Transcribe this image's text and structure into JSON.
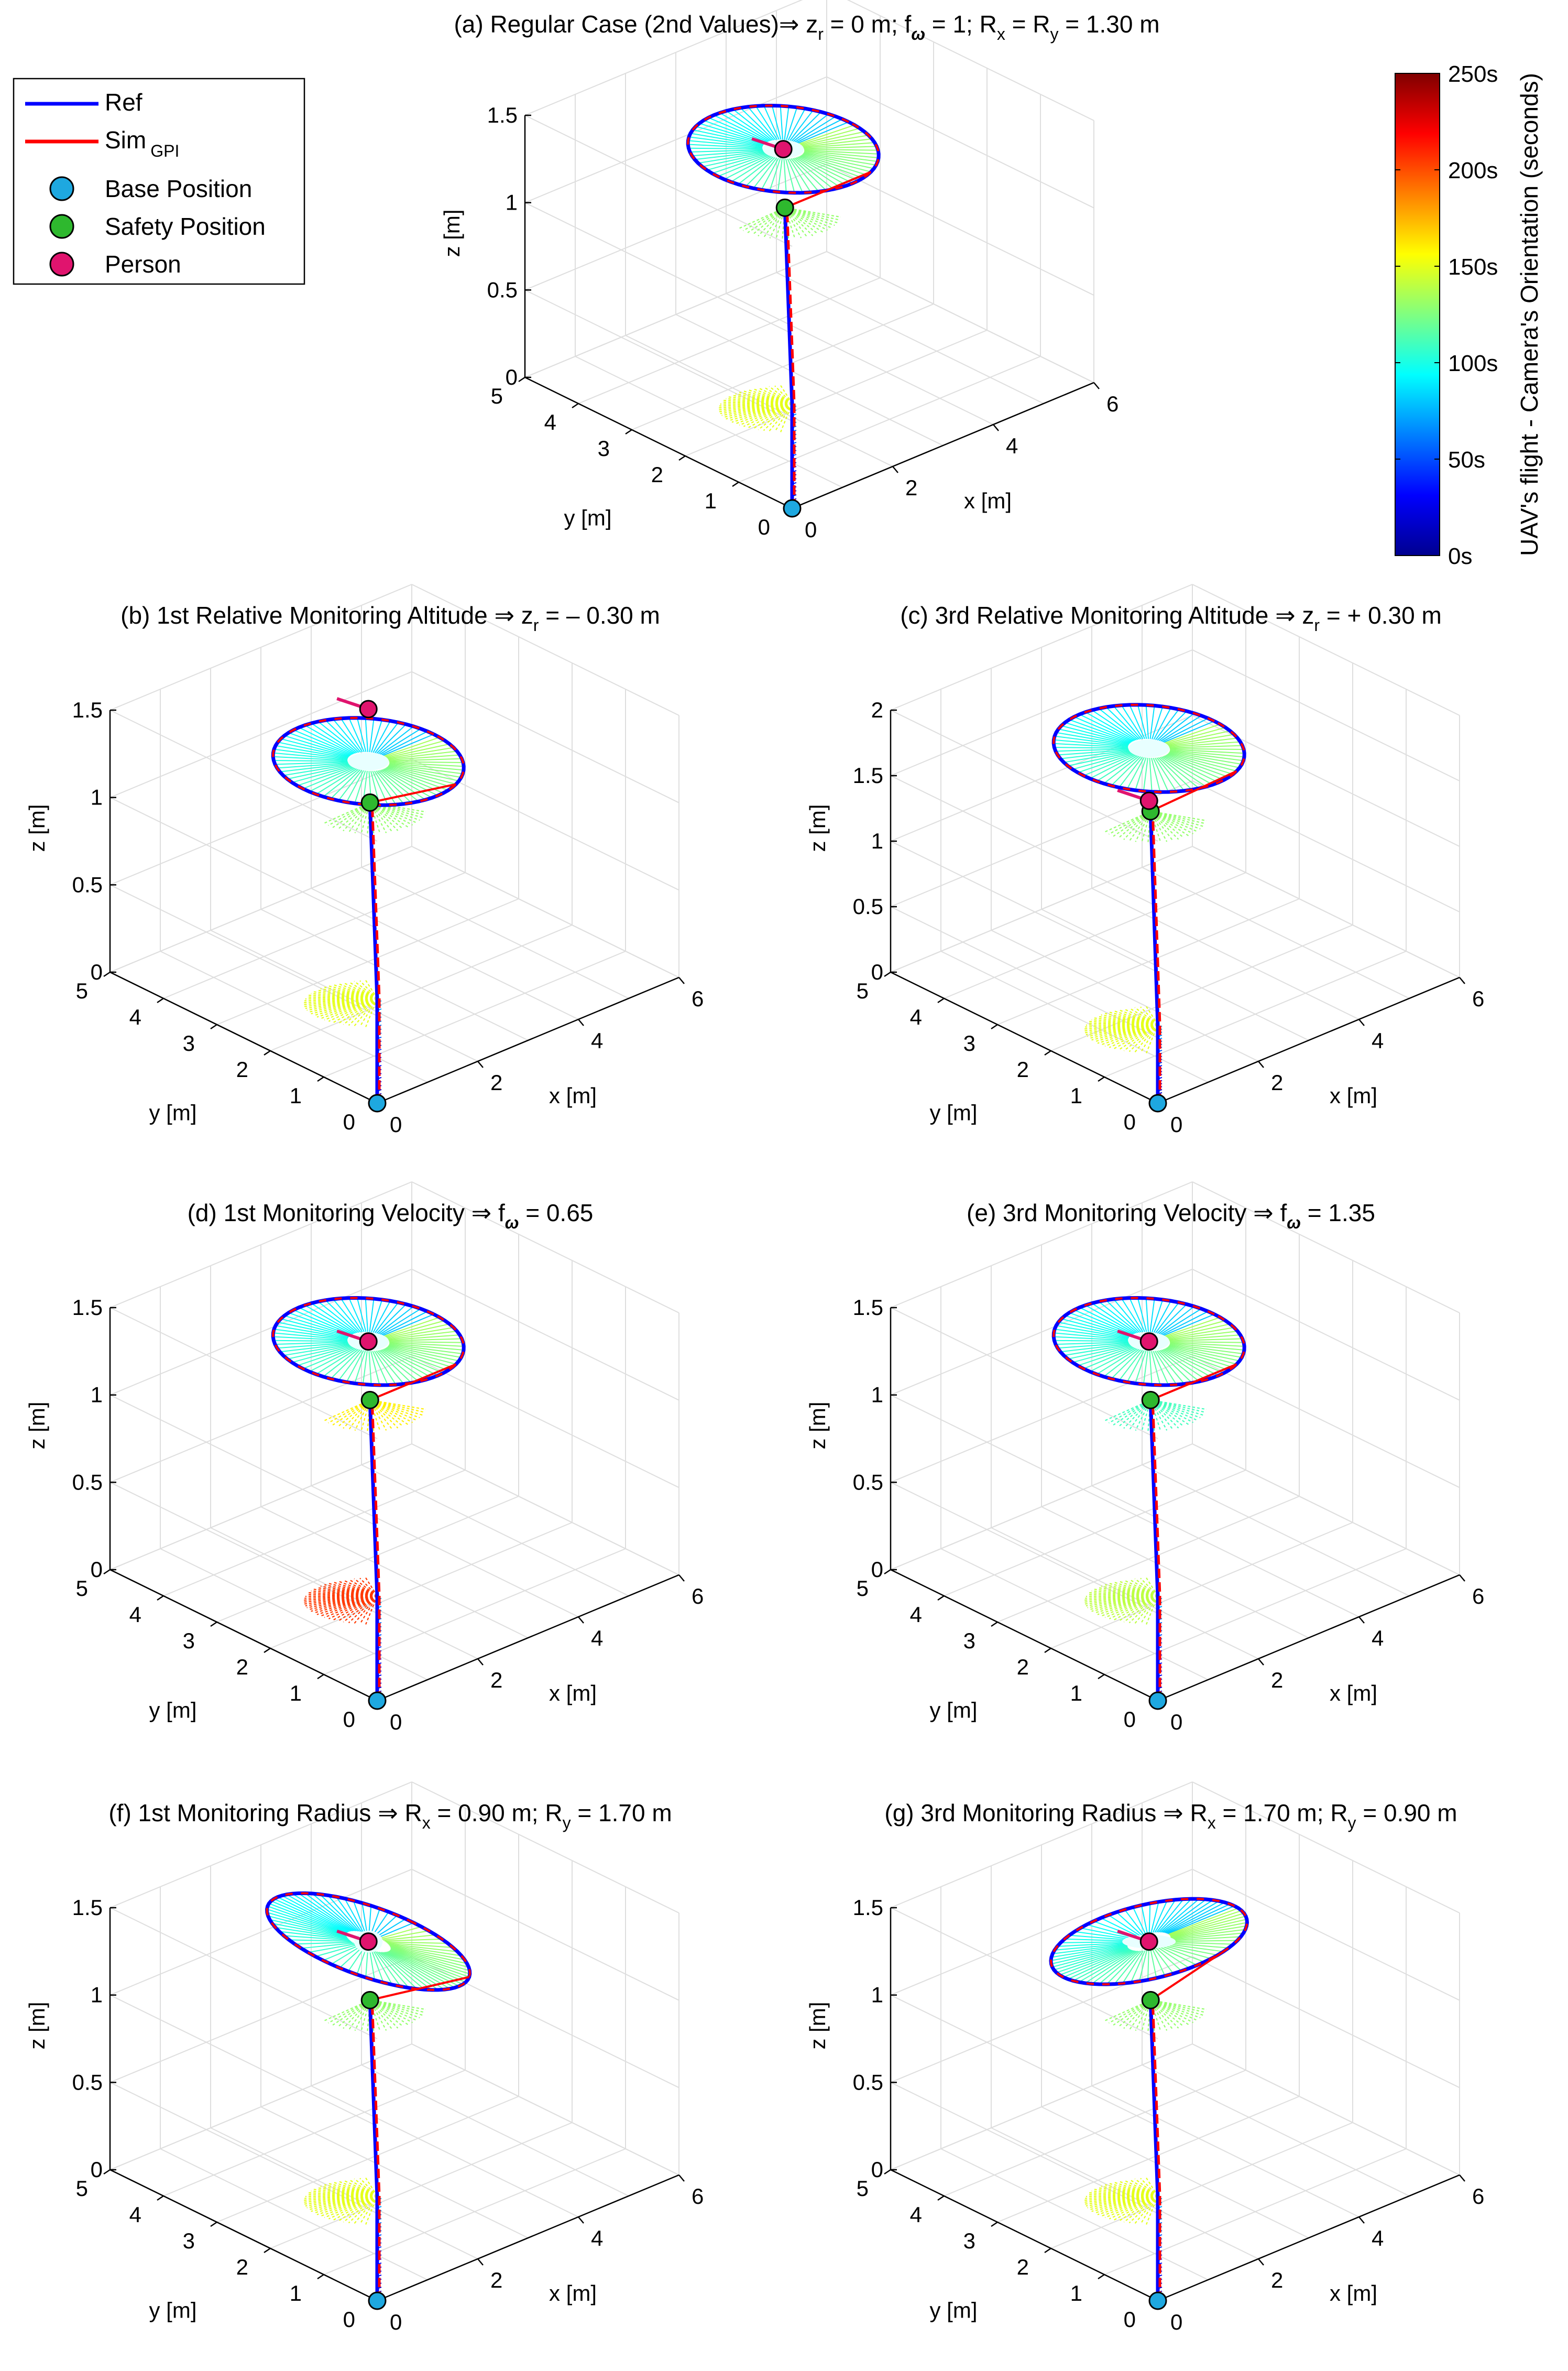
{
  "legend": {
    "ref": "Ref",
    "sim": "Sim",
    "sim_sub": "GPI",
    "base": "Base Position",
    "safety": "Safety Position",
    "person": "Person"
  },
  "colorbar": {
    "label": "UAV's flight - Camera's Orientation (seconds)",
    "ticks": [
      "0s",
      "50s",
      "100s",
      "150s",
      "200s",
      "250s"
    ],
    "range": [
      0,
      250
    ]
  },
  "axes_labels": {
    "x": "x [m]",
    "y": "y [m]",
    "z": "z [m]"
  },
  "colors": {
    "ref": "#0000ff",
    "sim": "#ff0000",
    "base": "#1ea8e0",
    "safety": "#2eb82e",
    "person": "#e0146e",
    "grid": "#dedede"
  },
  "chart_data": [
    {
      "id": "a",
      "type": "line3d",
      "title": "(a) Regular Case (2nd Values)⇒ z",
      "title_parts": [
        "(a) Regular Case (2nd Values)⇒ z",
        "r",
        " = 0 m; f",
        "ω",
        " = 1; R",
        "x",
        " = R",
        "y",
        " = 1.30 m"
      ],
      "xlim": [
        0,
        6
      ],
      "ylim": [
        0,
        5
      ],
      "zlim": [
        0,
        1.5
      ],
      "xticks": [
        "0",
        "2",
        "4",
        "6"
      ],
      "yticks": [
        "0",
        "1",
        "2",
        "3",
        "4",
        "5"
      ],
      "zticks": [
        "0",
        "0.5",
        "1",
        "1.5"
      ],
      "base": [
        0,
        0,
        0
      ],
      "mid": [
        0,
        0,
        0.6
      ],
      "safety": [
        2.3,
        2.3,
        1.1
      ],
      "person": [
        2.8,
        2.8,
        1.3
      ],
      "circle": {
        "rx": 1.3,
        "ry": 1.3,
        "z": 1.3
      },
      "loiter_color_t": 150,
      "loiter2_color_t": 130
    },
    {
      "id": "b",
      "type": "line3d",
      "title_parts": [
        "(b) 1st Relative Monitoring Altitude ⇒ z",
        "r",
        " = – 0.30 m"
      ],
      "xlim": [
        0,
        6
      ],
      "ylim": [
        0,
        5
      ],
      "zlim": [
        0,
        1.5
      ],
      "xticks": [
        "0",
        "2",
        "4",
        "6"
      ],
      "yticks": [
        "0",
        "1",
        "2",
        "3",
        "4",
        "5"
      ],
      "zticks": [
        "0",
        "0.5",
        "1",
        "1.5"
      ],
      "base": [
        0,
        0,
        0
      ],
      "mid": [
        0,
        0,
        0.6
      ],
      "safety": [
        2.3,
        2.3,
        1.1
      ],
      "person": [
        2.8,
        2.8,
        1.5
      ],
      "circle": {
        "rx": 1.3,
        "ry": 1.3,
        "z": 1.2
      },
      "loiter_color_t": 150,
      "loiter2_color_t": 130
    },
    {
      "id": "c",
      "type": "line3d",
      "title_parts": [
        "(c) 3rd Relative Monitoring Altitude  ⇒ z",
        "r",
        " = + 0.30 m"
      ],
      "xlim": [
        0,
        6
      ],
      "ylim": [
        0,
        5
      ],
      "zlim": [
        0,
        2
      ],
      "xticks": [
        "0",
        "2",
        "4",
        "6"
      ],
      "yticks": [
        "0",
        "1",
        "2",
        "3",
        "4",
        "5"
      ],
      "zticks": [
        "0",
        "0.5",
        "1",
        "1.5",
        "2"
      ],
      "base": [
        0,
        0,
        0
      ],
      "mid": [
        0,
        0,
        0.6
      ],
      "safety": [
        2.3,
        2.3,
        1.4
      ],
      "person": [
        2.8,
        2.8,
        1.3
      ],
      "circle": {
        "rx": 1.3,
        "ry": 1.3,
        "z": 1.7
      },
      "loiter_color_t": 150,
      "loiter2_color_t": 130
    },
    {
      "id": "d",
      "type": "line3d",
      "title_parts": [
        "(d) 1st Monitoring Velocity ⇒ f",
        "ω",
        " = 0.65"
      ],
      "xlim": [
        0,
        6
      ],
      "ylim": [
        0,
        5
      ],
      "zlim": [
        0,
        1.5
      ],
      "xticks": [
        "0",
        "2",
        "4",
        "6"
      ],
      "yticks": [
        "0",
        "1",
        "2",
        "3",
        "4",
        "5"
      ],
      "zticks": [
        "0",
        "0.5",
        "1",
        "1.5"
      ],
      "base": [
        0,
        0,
        0
      ],
      "mid": [
        0,
        0,
        0.6
      ],
      "safety": [
        2.3,
        2.3,
        1.1
      ],
      "person": [
        2.8,
        2.8,
        1.3
      ],
      "circle": {
        "rx": 1.3,
        "ry": 1.3,
        "z": 1.3
      },
      "loiter_color_t": 205,
      "loiter2_color_t": 160
    },
    {
      "id": "e",
      "type": "line3d",
      "title_parts": [
        "(e) 3rd Monitoring Velocity ⇒ f",
        "ω",
        " = 1.35"
      ],
      "xlim": [
        0,
        6
      ],
      "ylim": [
        0,
        5
      ],
      "zlim": [
        0,
        1.5
      ],
      "xticks": [
        "0",
        "2",
        "4",
        "6"
      ],
      "yticks": [
        "0",
        "1",
        "2",
        "3",
        "4",
        "5"
      ],
      "zticks": [
        "0",
        "0.5",
        "1",
        "1.5"
      ],
      "base": [
        0,
        0,
        0
      ],
      "mid": [
        0,
        0,
        0.6
      ],
      "safety": [
        2.3,
        2.3,
        1.1
      ],
      "person": [
        2.8,
        2.8,
        1.3
      ],
      "circle": {
        "rx": 1.3,
        "ry": 1.3,
        "z": 1.3
      },
      "loiter_color_t": 140,
      "loiter2_color_t": 110
    },
    {
      "id": "f",
      "type": "line3d",
      "title_parts": [
        "(f) 1st Monitoring Radius  ⇒  R",
        "x",
        " = 0.90 m; R",
        "y",
        " = 1.70 m"
      ],
      "xlim": [
        0,
        6
      ],
      "ylim": [
        0,
        5
      ],
      "zlim": [
        0,
        1.5
      ],
      "xticks": [
        "0",
        "2",
        "4",
        "6"
      ],
      "yticks": [
        "0",
        "1",
        "2",
        "3",
        "4",
        "5"
      ],
      "zticks": [
        "0",
        "0.5",
        "1",
        "1.5"
      ],
      "base": [
        0,
        0,
        0
      ],
      "mid": [
        0,
        0,
        0.6
      ],
      "safety": [
        2.3,
        2.3,
        1.1
      ],
      "person": [
        2.8,
        2.8,
        1.3
      ],
      "circle": {
        "rx": 0.9,
        "ry": 1.7,
        "z": 1.3
      },
      "loiter_color_t": 150,
      "loiter2_color_t": 130
    },
    {
      "id": "g",
      "type": "line3d",
      "title_parts": [
        "(g) 3rd Monitoring Radius ⇒ R",
        "x",
        " = 1.70 m; R",
        "y",
        " = 0.90 m"
      ],
      "xlim": [
        0,
        6
      ],
      "ylim": [
        0,
        5
      ],
      "zlim": [
        0,
        1.5
      ],
      "xticks": [
        "0",
        "2",
        "4",
        "6"
      ],
      "yticks": [
        "0",
        "1",
        "2",
        "3",
        "4",
        "5"
      ],
      "zticks": [
        "0",
        "0.5",
        "1",
        "1.5"
      ],
      "base": [
        0,
        0,
        0
      ],
      "mid": [
        0,
        0,
        0.6
      ],
      "safety": [
        2.3,
        2.3,
        1.1
      ],
      "person": [
        2.8,
        2.8,
        1.3
      ],
      "circle": {
        "rx": 1.7,
        "ry": 0.9,
        "z": 1.3
      },
      "loiter_color_t": 150,
      "loiter2_color_t": 130
    }
  ]
}
